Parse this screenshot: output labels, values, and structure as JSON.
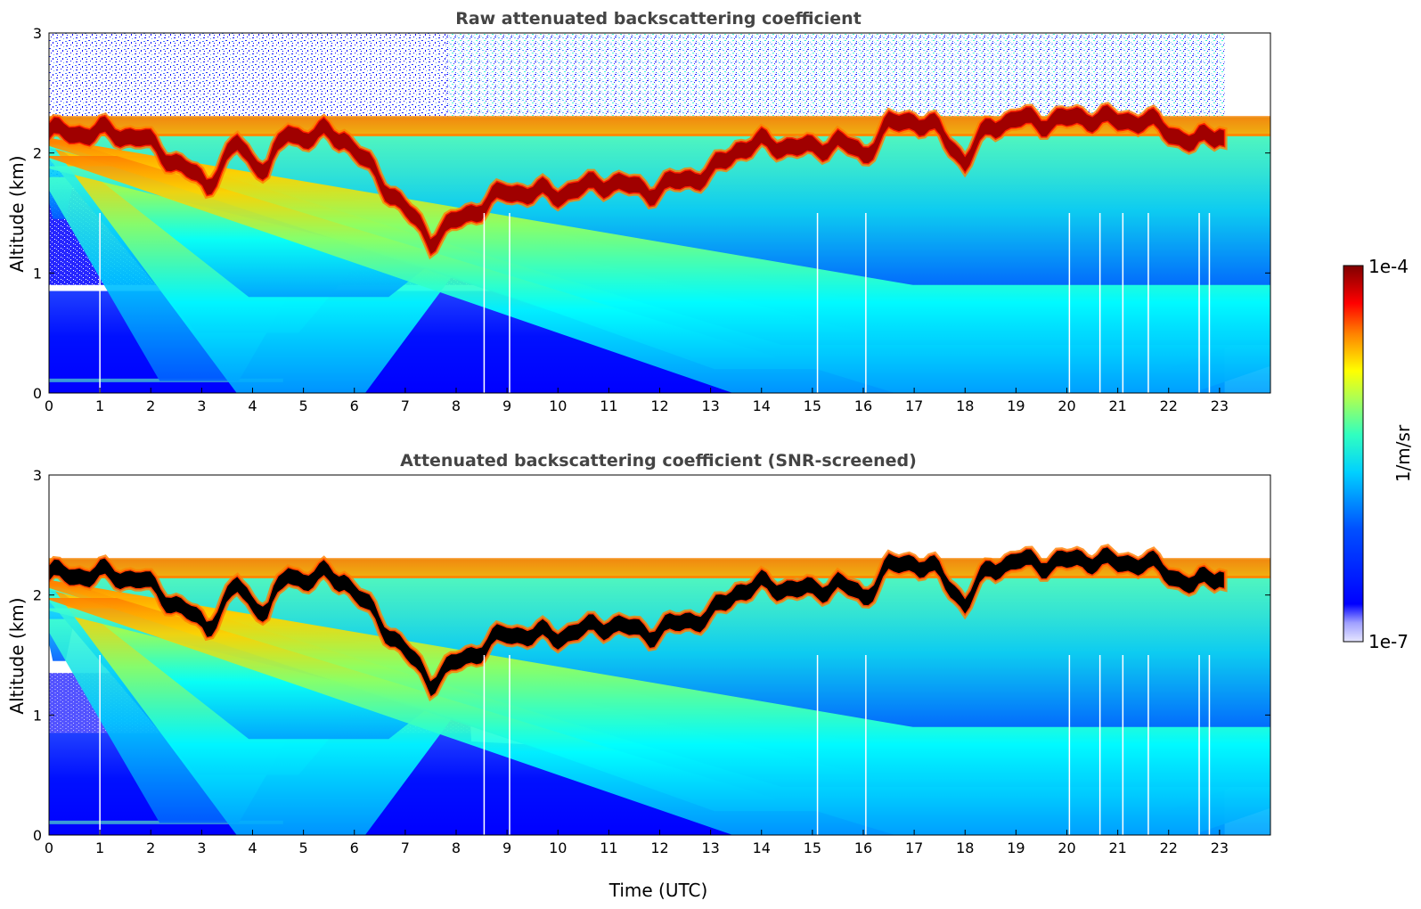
{
  "colors": {
    "jet": [
      "#00007f",
      "#0000ff",
      "#007fff",
      "#00ffff",
      "#7fff7f",
      "#ffff00",
      "#ff7f00",
      "#ff0000",
      "#7f0000"
    ],
    "low_tint": "#e6e6ff",
    "saturated_core": "#000000",
    "title_color": "#444444"
  },
  "chart_data": [
    {
      "type": "heatmap",
      "title": "Raw attenuated backscattering coefficient",
      "xlabel": "",
      "ylabel": "Altitude (km)",
      "xlim": [
        0,
        24
      ],
      "ylim": [
        0,
        3
      ],
      "x_ticks": [
        "0",
        "1",
        "2",
        "3",
        "4",
        "5",
        "6",
        "7",
        "8",
        "9",
        "10",
        "11",
        "12",
        "13",
        "14",
        "15",
        "16",
        "17",
        "18",
        "19",
        "20",
        "21",
        "22",
        "23"
      ],
      "y_ticks": [
        "0",
        "1",
        "2",
        "3"
      ],
      "data_extent_hours": [
        0,
        23.1
      ],
      "cloud_layer": {
        "time": [
          0,
          0.5,
          1,
          1.5,
          1.8,
          2.8,
          3.1,
          3.7,
          4.0,
          4.3,
          4.7,
          5.0,
          5.4,
          5.8,
          7.5,
          8,
          9,
          10,
          11,
          11.8,
          12.5,
          13,
          13.5,
          14,
          14.5,
          15,
          15.5,
          16,
          16.5,
          17,
          17.5,
          18,
          18.5,
          19,
          19.5,
          20,
          20.5,
          21,
          21.5,
          22,
          22.5,
          23,
          23.1
        ],
        "altitude_km": [
          2.2,
          2.18,
          2.2,
          2.17,
          2.15,
          1.85,
          1.75,
          2.1,
          1.95,
          1.9,
          2.2,
          2.15,
          2.18,
          2.15,
          1.3,
          1.45,
          1.7,
          1.68,
          1.78,
          1.7,
          1.8,
          1.85,
          2.05,
          2.1,
          2.08,
          2.05,
          2.12,
          2.0,
          2.25,
          2.3,
          2.2,
          1.95,
          2.25,
          2.3,
          2.28,
          2.3,
          2.32,
          2.28,
          2.3,
          2.2,
          2.1,
          2.2,
          2.15
        ]
      },
      "dropouts_hours": [
        1.0,
        8.55,
        9.05,
        15.1,
        16.05,
        20.05,
        20.65,
        21.1,
        21.6,
        22.6,
        22.8
      ]
    },
    {
      "type": "heatmap",
      "title": "Attenuated backscattering coefficient (SNR-screened)",
      "xlabel": "Time (UTC)",
      "ylabel": "Altitude (km)",
      "xlim": [
        0,
        24
      ],
      "ylim": [
        0,
        3
      ],
      "x_ticks": [
        "0",
        "1",
        "2",
        "3",
        "4",
        "5",
        "6",
        "7",
        "8",
        "9",
        "10",
        "11",
        "12",
        "13",
        "14",
        "15",
        "16",
        "17",
        "18",
        "19",
        "20",
        "21",
        "22",
        "23"
      ],
      "y_ticks": [
        "0",
        "1",
        "2",
        "3"
      ],
      "data_extent_hours": [
        0,
        23.1
      ]
    }
  ],
  "colorbar": {
    "label": "1/m/sr",
    "max_label": "1e-4",
    "min_label": "1e-7",
    "scale": "log"
  }
}
